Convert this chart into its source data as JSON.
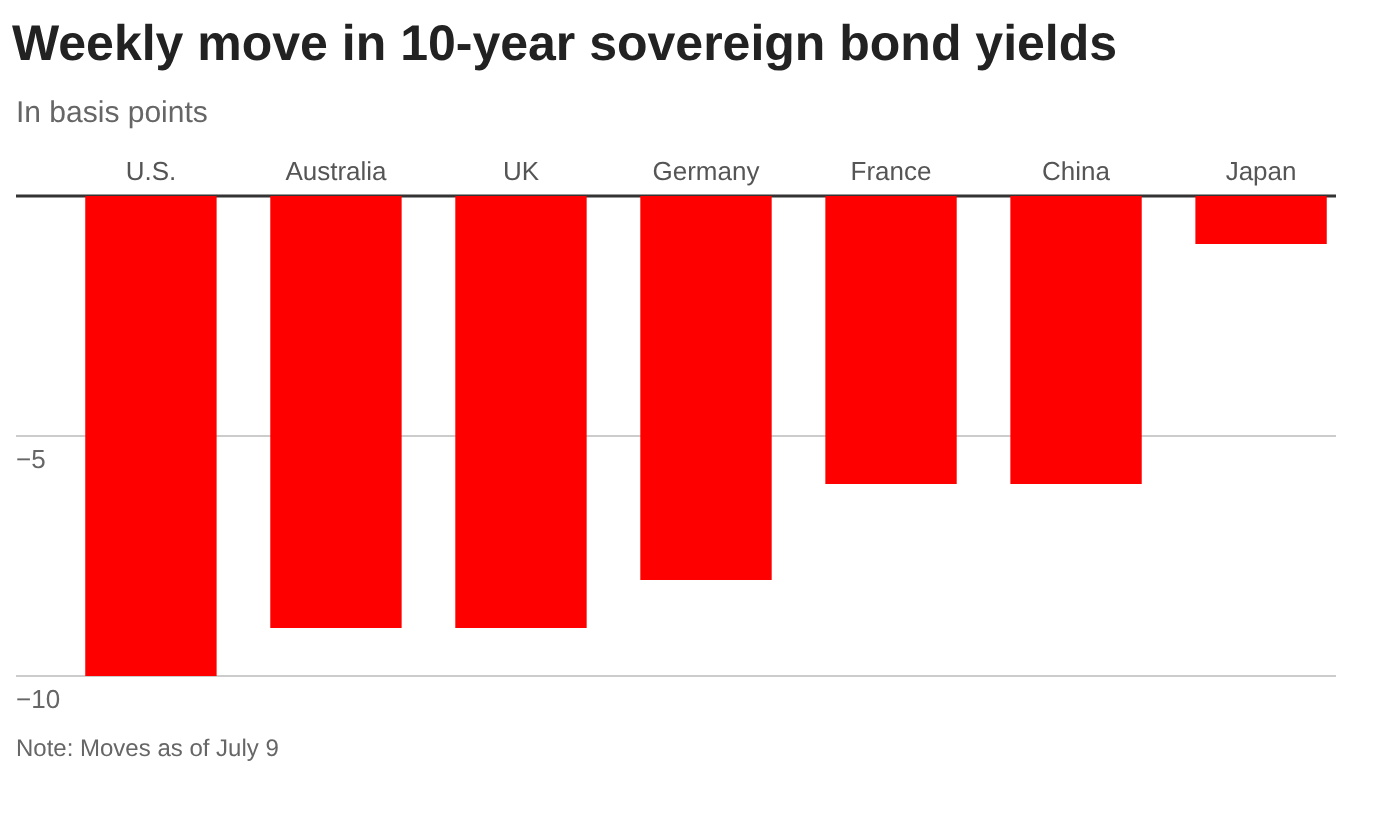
{
  "chart_data": {
    "type": "bar",
    "title": "Weekly move in 10-year sovereign bond yields",
    "subtitle": "In basis points",
    "categories": [
      "U.S.",
      "Australia",
      "UK",
      "Germany",
      "France",
      "China",
      "Japan"
    ],
    "values": [
      -10,
      -9,
      -9,
      -8,
      -6,
      -6,
      -1
    ],
    "color": "#ff0000",
    "ylim": [
      -10,
      0
    ],
    "yticks": [
      {
        "value": 0,
        "label": null
      },
      {
        "value": -5,
        "label": "−5"
      },
      {
        "value": -10,
        "label": "−10"
      }
    ],
    "grid": "y",
    "annotations": [
      "Note: Moves as of July 9"
    ]
  }
}
